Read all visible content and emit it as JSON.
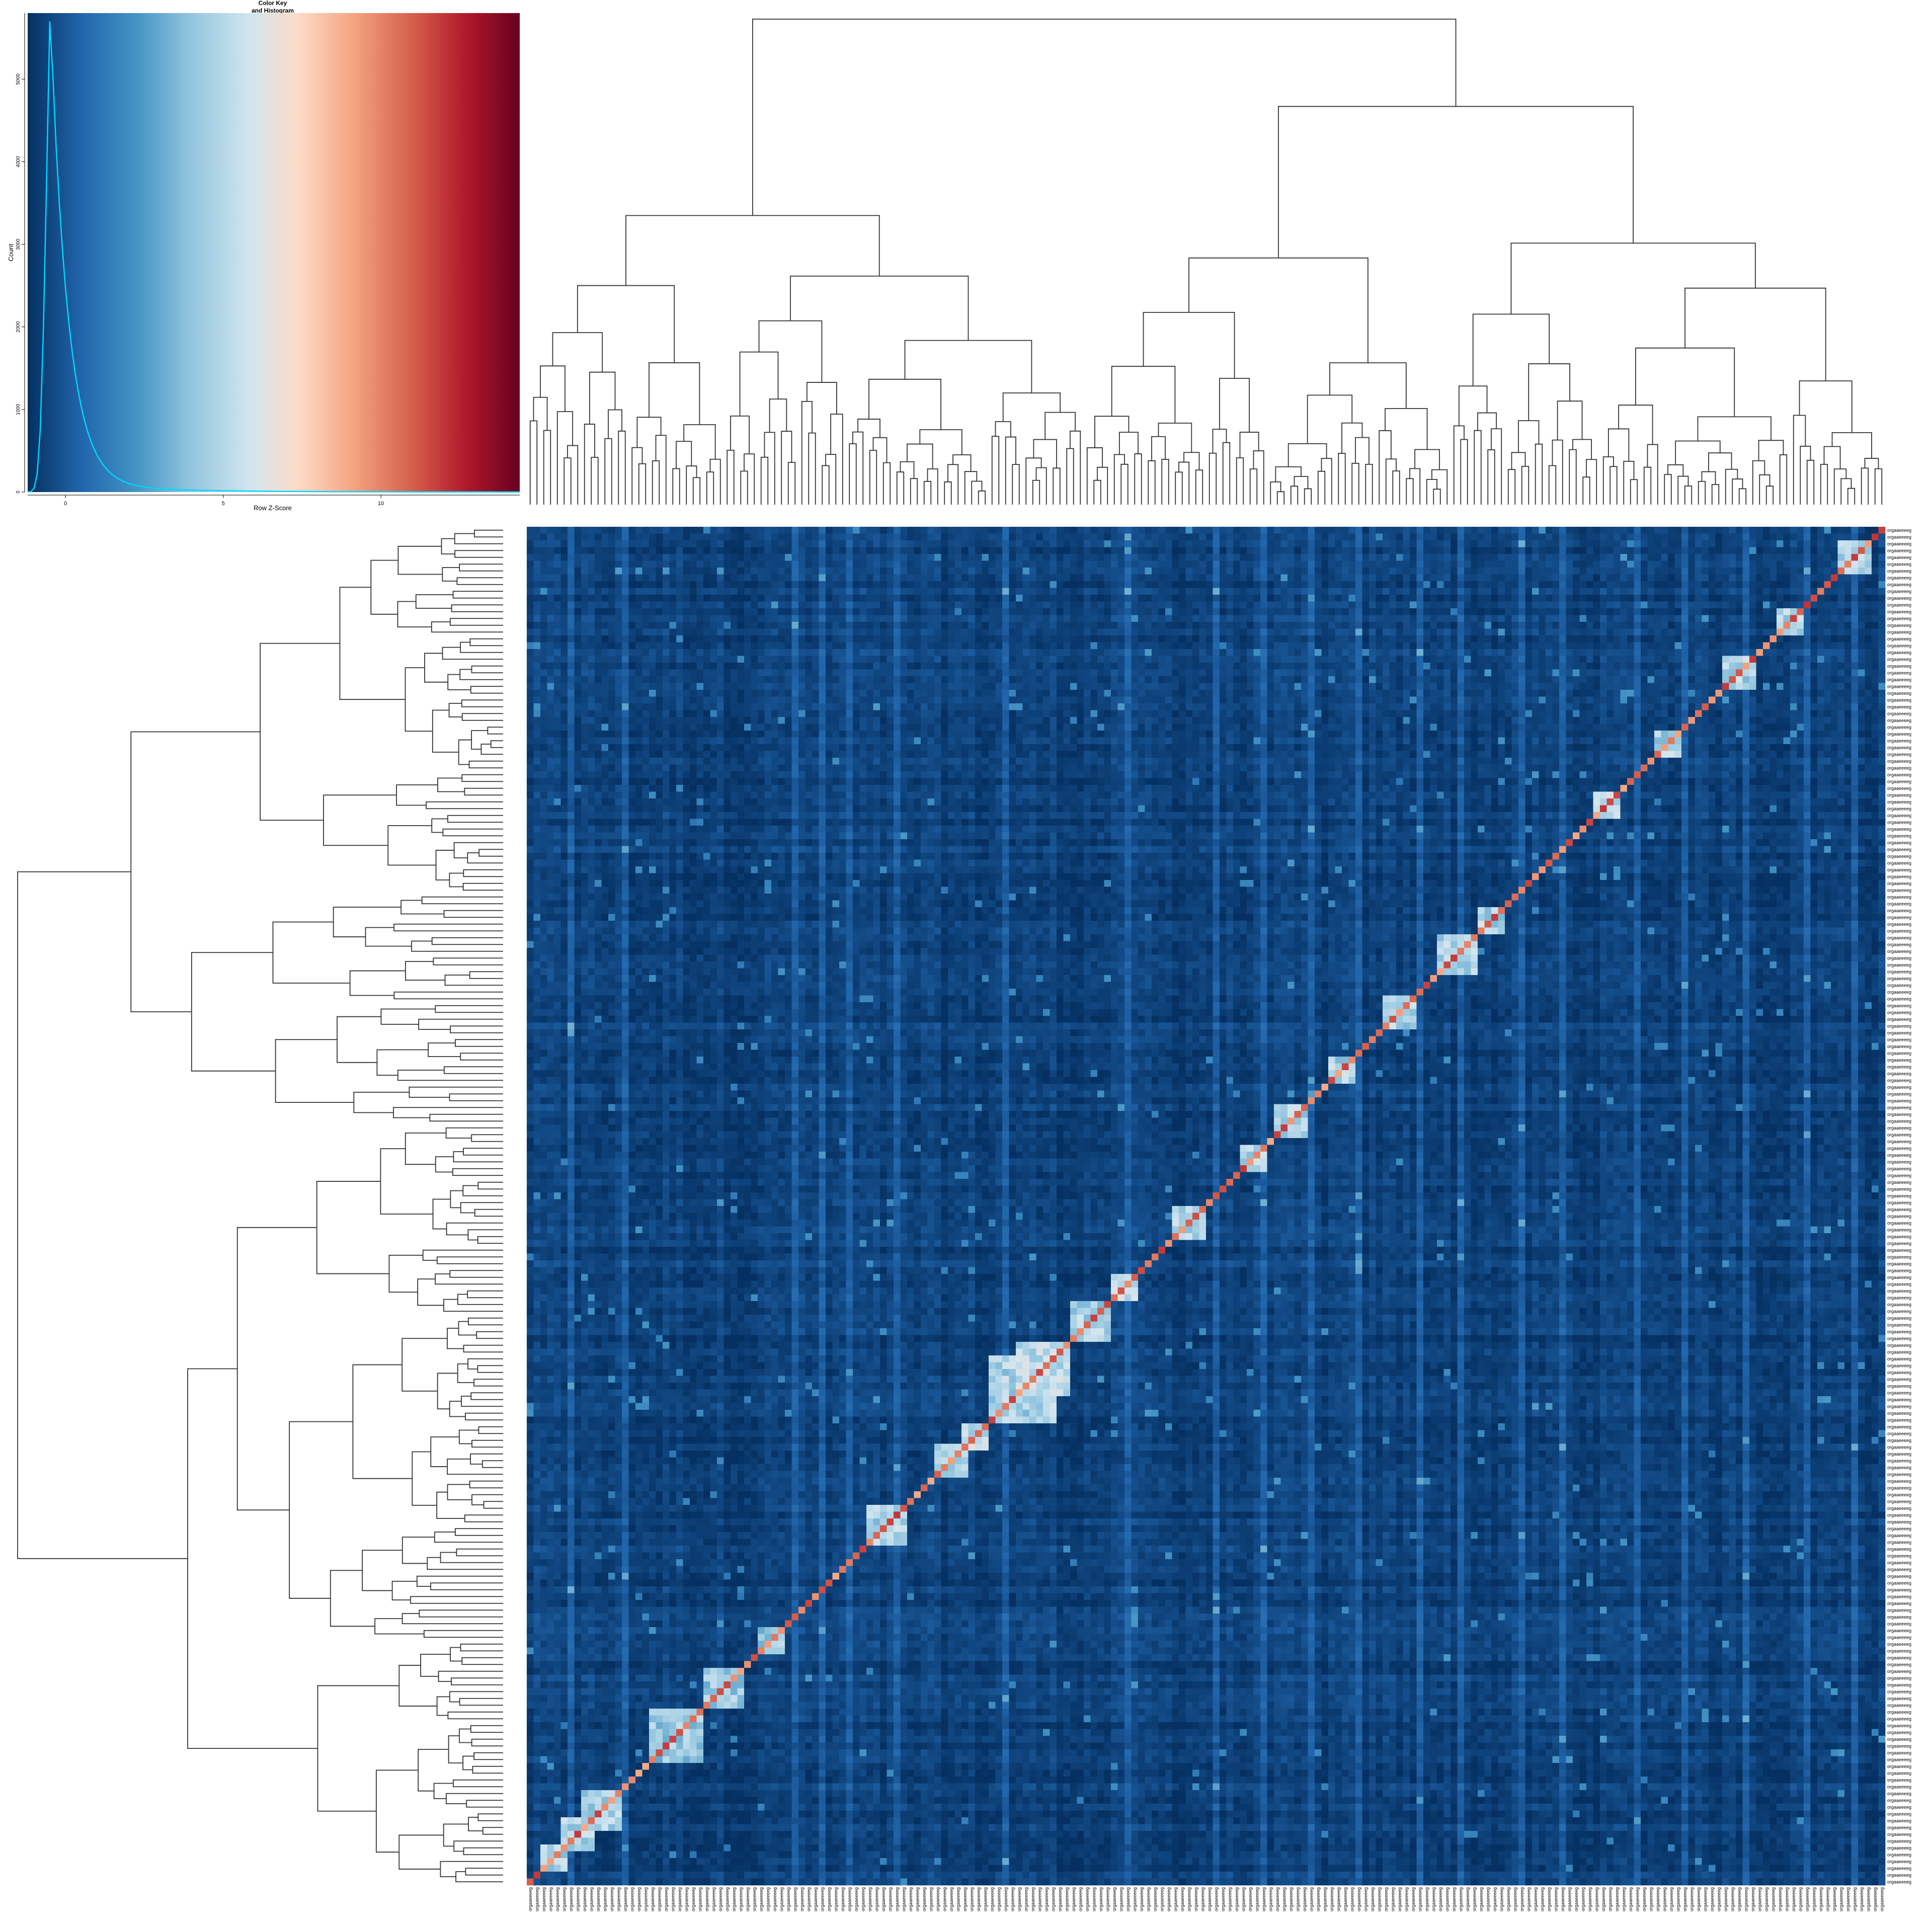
{
  "color_key": {
    "title_line1": "Color Key",
    "title_line2": "and Histogram",
    "xlabel": "Row Z-Score",
    "ylabel": "Count",
    "x_ticks": [
      "0",
      "5",
      "10"
    ],
    "x_tick_values": [
      0,
      5,
      10
    ],
    "y_ticks": [
      "0",
      "1000",
      "2000",
      "3000",
      "4000",
      "5000"
    ],
    "y_tick_values": [
      0,
      1000,
      2000,
      3000,
      4000,
      5000
    ],
    "xlim": [
      -1.2,
      14.4
    ],
    "ylim": [
      0,
      5800
    ],
    "colors": [
      "#053061",
      "#2166ac",
      "#4393c3",
      "#92c5de",
      "#d1e5f0",
      "#fddbc7",
      "#f4a582",
      "#d6604d",
      "#b2182b",
      "#67001f"
    ],
    "histogram_color": "#00d8ff"
  },
  "chart_data": {
    "type": "heatmap",
    "title": "",
    "xlabel": "",
    "ylabel": "",
    "n_rows": 200,
    "n_cols": 200,
    "row_label_text": "orgaaeeeeg",
    "col_label_text": "orgaaeeeeg",
    "diagonal_value": 12,
    "background_value_range": [
      -1,
      0.5
    ],
    "cluster_blocks": [
      {
        "start": 2,
        "size": 4,
        "value": 5.5
      },
      {
        "start": 5,
        "size": 5,
        "value": 5.5
      },
      {
        "start": 8,
        "size": 6,
        "value": 5.5
      },
      {
        "start": 18,
        "size": 8,
        "value": 5.0
      },
      {
        "start": 26,
        "size": 6,
        "value": 5.0
      },
      {
        "start": 34,
        "size": 4,
        "value": 5.0
      },
      {
        "start": 50,
        "size": 6,
        "value": 5.5
      },
      {
        "start": 60,
        "size": 5,
        "value": 5.5
      },
      {
        "start": 64,
        "size": 4,
        "value": 6.0
      },
      {
        "start": 68,
        "size": 10,
        "value": 5.5
      },
      {
        "start": 72,
        "size": 8,
        "value": 6.0
      },
      {
        "start": 80,
        "size": 6,
        "value": 5.5
      },
      {
        "start": 86,
        "size": 4,
        "value": 6.0
      },
      {
        "start": 95,
        "size": 5,
        "value": 5.5
      },
      {
        "start": 105,
        "size": 4,
        "value": 5.5
      },
      {
        "start": 110,
        "size": 5,
        "value": 5.5
      },
      {
        "start": 118,
        "size": 4,
        "value": 5.5
      },
      {
        "start": 126,
        "size": 5,
        "value": 5.5
      },
      {
        "start": 134,
        "size": 6,
        "value": 5.5
      },
      {
        "start": 140,
        "size": 4,
        "value": 5.5
      },
      {
        "start": 157,
        "size": 4,
        "value": 6.0
      },
      {
        "start": 166,
        "size": 4,
        "value": 5.5
      },
      {
        "start": 176,
        "size": 5,
        "value": 5.5
      },
      {
        "start": 184,
        "size": 4,
        "value": 5.5
      },
      {
        "start": 193,
        "size": 5,
        "value": 5.5
      }
    ],
    "hot_columns": [
      6,
      14,
      39,
      43,
      47,
      54,
      70,
      88,
      101,
      108,
      115,
      122,
      131,
      137,
      146,
      152,
      163,
      170,
      179,
      188,
      195
    ],
    "colorbar_range": [
      -1.2,
      14.4
    ]
  }
}
